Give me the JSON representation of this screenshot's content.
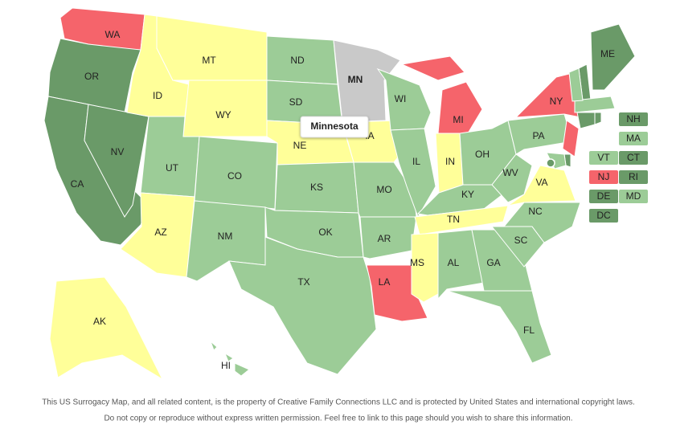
{
  "states": [
    {
      "label": "WA",
      "color": "#f5646b"
    },
    {
      "label": "OR",
      "color": "#6a9a68"
    },
    {
      "label": "CA",
      "color": "#6a9a68"
    },
    {
      "label": "NV",
      "color": "#6a9a68"
    },
    {
      "label": "ID",
      "color": "#ffff99"
    },
    {
      "label": "MT",
      "color": "#ffff99"
    },
    {
      "label": "WY",
      "color": "#ffff99"
    },
    {
      "label": "UT",
      "color": "#9ccc97"
    },
    {
      "label": "CO",
      "color": "#9ccc97"
    },
    {
      "label": "AZ",
      "color": "#ffff99"
    },
    {
      "label": "NM",
      "color": "#9ccc97"
    },
    {
      "label": "ND",
      "color": "#9ccc97"
    },
    {
      "label": "SD",
      "color": "#9ccc97"
    },
    {
      "label": "NE",
      "color": "#ffff99"
    },
    {
      "label": "KS",
      "color": "#9ccc97"
    },
    {
      "label": "OK",
      "color": "#9ccc97"
    },
    {
      "label": "TX",
      "color": "#9ccc97"
    },
    {
      "label": "MN",
      "color": "#c9c9c9"
    },
    {
      "label": "IA",
      "color": "#ffff99"
    },
    {
      "label": "MO",
      "color": "#9ccc97"
    },
    {
      "label": "AR",
      "color": "#9ccc97"
    },
    {
      "label": "LA",
      "color": "#f5646b"
    },
    {
      "label": "WI",
      "color": "#9ccc97"
    },
    {
      "label": "IL",
      "color": "#9ccc97"
    },
    {
      "label": "MI",
      "color": "#f5646b"
    },
    {
      "label": "IN",
      "color": "#ffff99"
    },
    {
      "label": "OH",
      "color": "#9ccc97"
    },
    {
      "label": "KY",
      "color": "#9ccc97"
    },
    {
      "label": "TN",
      "color": "#ffff99"
    },
    {
      "label": "MS",
      "color": "#ffff99"
    },
    {
      "label": "AL",
      "color": "#9ccc97"
    },
    {
      "label": "GA",
      "color": "#9ccc97"
    },
    {
      "label": "FL",
      "color": "#9ccc97"
    },
    {
      "label": "SC",
      "color": "#9ccc97"
    },
    {
      "label": "NC",
      "color": "#9ccc97"
    },
    {
      "label": "VA",
      "color": "#ffff99"
    },
    {
      "label": "WV",
      "color": "#9ccc97"
    },
    {
      "label": "PA",
      "color": "#9ccc97"
    },
    {
      "label": "NY",
      "color": "#f5646b"
    },
    {
      "label": "ME",
      "color": "#6a9a68"
    },
    {
      "label": "AK",
      "color": "#ffff99"
    },
    {
      "label": "HI",
      "color": "#9ccc97"
    }
  ],
  "small_states": [
    {
      "label": "NH",
      "color": "#6a9a68"
    },
    {
      "label": "MA",
      "color": "#9ccc97"
    },
    {
      "label": "VT",
      "color": "#9ccc97"
    },
    {
      "label": "CT",
      "color": "#6a9a68"
    },
    {
      "label": "NJ",
      "color": "#f5646b"
    },
    {
      "label": "RI",
      "color": "#6a9a68"
    },
    {
      "label": "DE",
      "color": "#6a9a68"
    },
    {
      "label": "MD",
      "color": "#9ccc97"
    },
    {
      "label": "DC",
      "color": "#6a9a68"
    }
  ],
  "tooltip": "Minnesota",
  "footer": [
    "This US Surrogacy Map, and all related content, is the property of Creative Family Connections LLC and is protected by United States and international copyright laws.",
    "Do not copy or reproduce without express written permission. Feel free to link to this page should you wish to share this information."
  ]
}
